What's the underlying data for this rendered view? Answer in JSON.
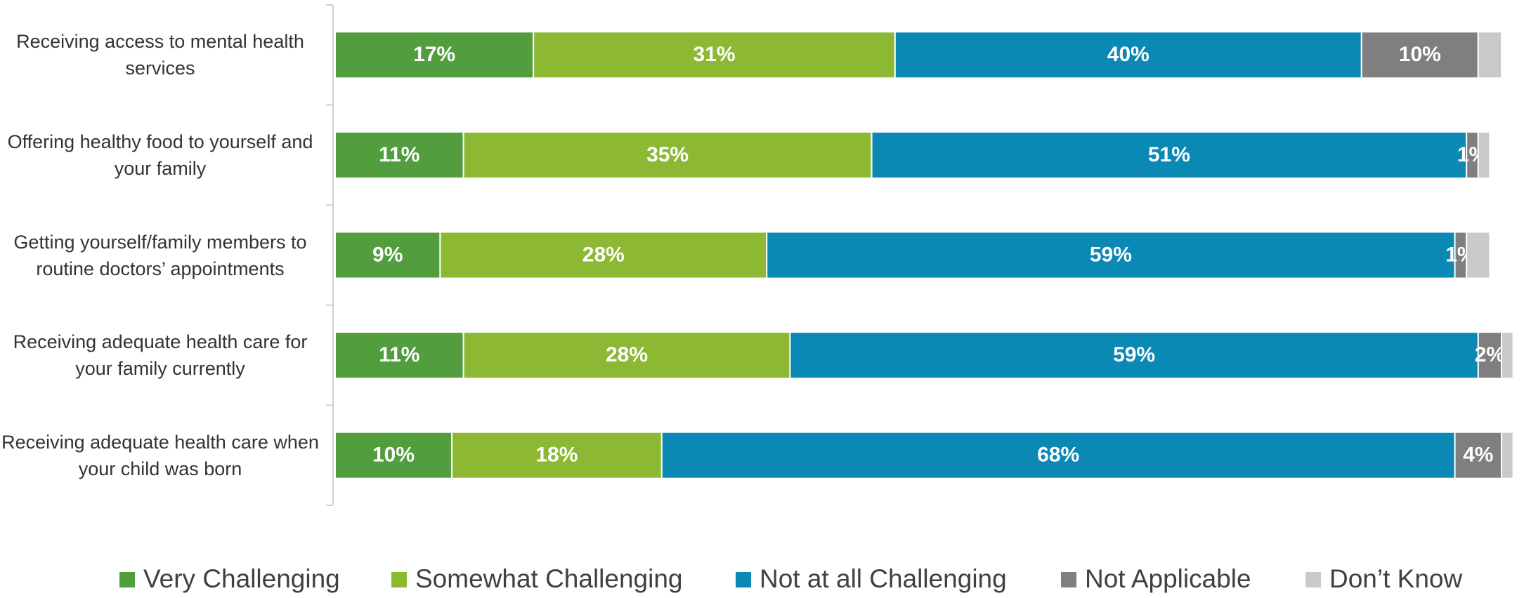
{
  "chart_data": {
    "type": "stacked-bar-horizontal",
    "categories": [
      "Receiving access to mental health services",
      "Offering healthy food to yourself and your family",
      "Getting yourself/family members to routine doctors’ appointments",
      "Receiving adequate health care for your family currently",
      "Receiving adequate health care when your child was born"
    ],
    "series": [
      {
        "name": "Very Challenging",
        "color": "#529e3e",
        "values": [
          17,
          11,
          9,
          11,
          10
        ],
        "value_labels": [
          "17%",
          "11%",
          "9%",
          "11%",
          "10%"
        ]
      },
      {
        "name": "Somewhat Challenging",
        "color": "#8cb833",
        "values": [
          31,
          35,
          28,
          28,
          18
        ],
        "value_labels": [
          "31%",
          "35%",
          "28%",
          "28%",
          "18%"
        ]
      },
      {
        "name": "Not at all Challenging",
        "color": "#0b89b5",
        "values": [
          40,
          51,
          59,
          59,
          68
        ],
        "value_labels": [
          "40%",
          "51%",
          "59%",
          "59%",
          "68%"
        ]
      },
      {
        "name": "Not Applicable",
        "color": "#7f7f7f",
        "values": [
          10,
          1,
          1,
          2,
          4
        ],
        "value_labels": [
          "10%",
          "1%",
          "1%",
          "2%",
          "4%"
        ]
      },
      {
        "name": "Don’t Know",
        "color": "#c9c9c9",
        "values": [
          2,
          1,
          2,
          1,
          1
        ]
      }
    ],
    "xlim": [
      0,
      100
    ]
  }
}
